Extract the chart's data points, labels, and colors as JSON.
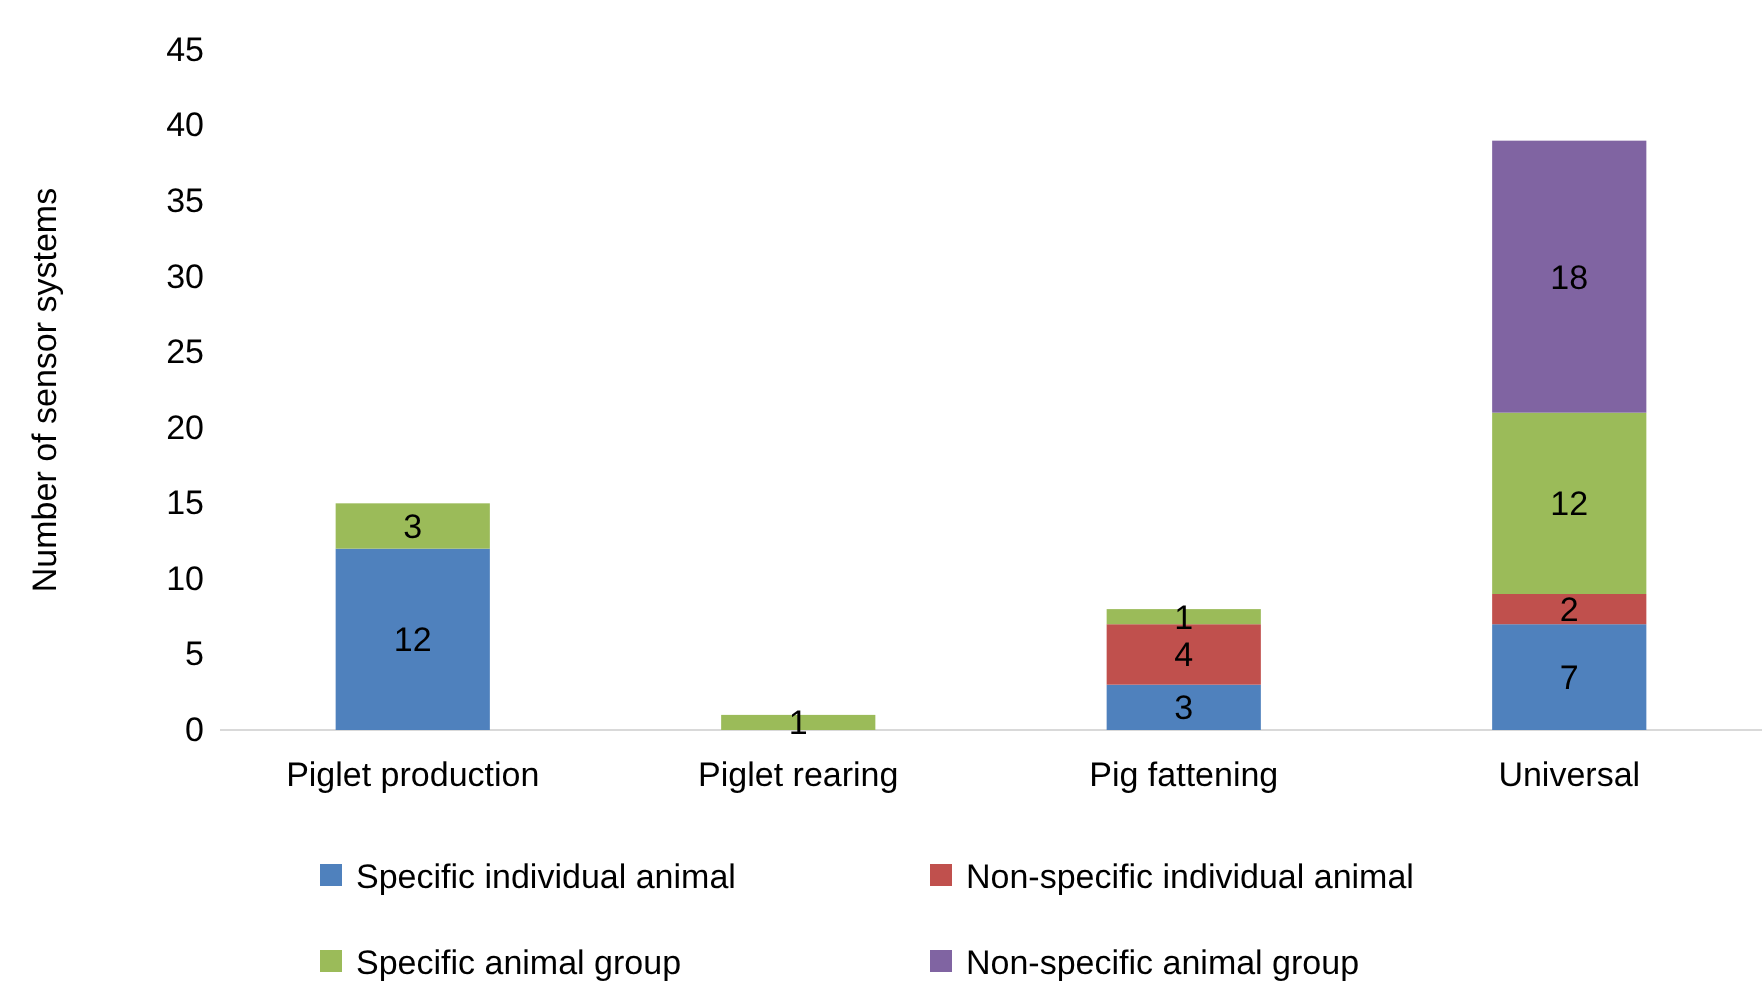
{
  "chart_data": {
    "type": "bar",
    "stacked": true,
    "ylabel": "Number of sensor systems",
    "categories": [
      "Piglet production",
      "Piglet rearing",
      "Pig fattening",
      "Universal"
    ],
    "ylim": [
      0,
      45
    ],
    "yticks": [
      0,
      5,
      10,
      15,
      20,
      25,
      30,
      35,
      40,
      45
    ],
    "grid": false,
    "legend": "bottom",
    "series": [
      {
        "name": "Specific individual animal",
        "color": "#4f81bd",
        "values": [
          12,
          0,
          3,
          7
        ],
        "value_labels": [
          "12",
          null,
          "3",
          "7"
        ]
      },
      {
        "name": "Non-specific individual animal",
        "color": "#c0504d",
        "values": [
          0,
          0,
          4,
          2
        ],
        "value_labels": [
          null,
          null,
          "4",
          "2"
        ]
      },
      {
        "name": "Specific animal group",
        "color": "#9bbb59",
        "values": [
          3,
          1,
          1,
          12
        ],
        "value_labels": [
          "3",
          "1",
          "1",
          "12"
        ]
      },
      {
        "name": "Non-specific animal group",
        "color": "#8064a2",
        "values": [
          0,
          0,
          0,
          18
        ],
        "value_labels": [
          null,
          null,
          null,
          "18"
        ]
      }
    ]
  }
}
